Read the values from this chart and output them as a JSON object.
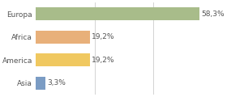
{
  "categories": [
    "Europa",
    "Africa",
    "America",
    "Asia"
  ],
  "values": [
    58.3,
    19.2,
    19.2,
    3.3
  ],
  "labels": [
    "58,3%",
    "19,2%",
    "19,2%",
    "3,3%"
  ],
  "bar_colors": [
    "#a8bc8a",
    "#e8b07a",
    "#f0c860",
    "#7b9cc4"
  ],
  "background_color": "#ffffff",
  "xlim": [
    0,
    63
  ],
  "grid_lines": [
    21,
    42,
    63
  ],
  "label_fontsize": 6.5,
  "tick_fontsize": 6.5,
  "bar_height": 0.55
}
